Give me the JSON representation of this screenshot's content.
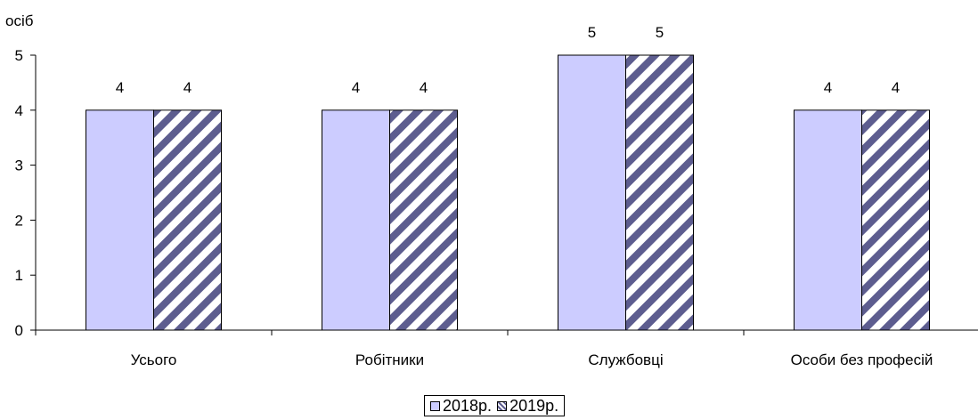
{
  "chart_data": {
    "type": "bar",
    "unit_label": "осіб",
    "categories": [
      "Усього",
      "Робітники",
      "Службовці",
      "Особи без професій"
    ],
    "series": [
      {
        "name": "2018р.",
        "values": [
          4,
          4,
          5,
          4
        ],
        "color": "#ccccff",
        "pattern": "solid"
      },
      {
        "name": "2019р.",
        "values": [
          4,
          4,
          5,
          4
        ],
        "color": "#5d5d8f",
        "pattern": "diagonal-stripes"
      }
    ],
    "ylim": [
      0,
      5
    ],
    "yticks": [
      0,
      1,
      2,
      3,
      4,
      5
    ],
    "data_labels": true,
    "grid": false,
    "legend_position": "bottom-center"
  }
}
